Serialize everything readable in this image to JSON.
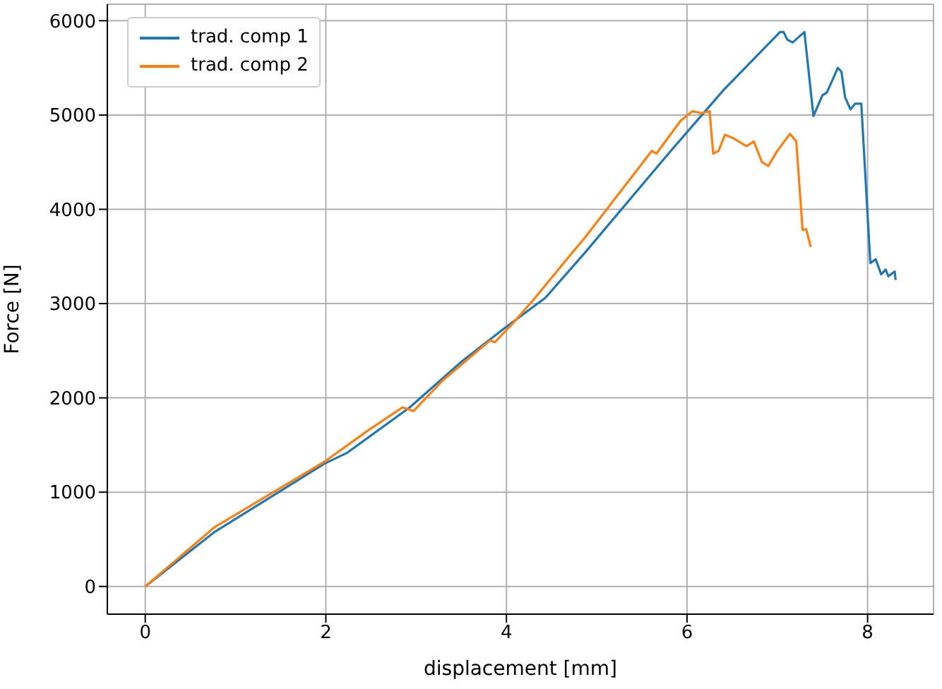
{
  "chart_data": {
    "type": "line",
    "xlabel": "displacement [mm]",
    "ylabel": "Force [N]",
    "xlim": [
      -0.42,
      8.73
    ],
    "ylim": [
      -294,
      6175
    ],
    "xticks": [
      0,
      2,
      4,
      6,
      8
    ],
    "yticks": [
      0,
      1000,
      2000,
      3000,
      4000,
      5000,
      6000
    ],
    "grid": true,
    "legend": "top left",
    "series": [
      {
        "name": "trad. comp 1",
        "color": "#1f77b4",
        "x": [
          0,
          0.77,
          1.98,
          2.24,
          2.93,
          3.51,
          3.98,
          4.43,
          4.87,
          5.82,
          6.4,
          7.03,
          7.07,
          7.11,
          7.17,
          7.3,
          7.4,
          7.5,
          7.55,
          7.67,
          7.71,
          7.75,
          7.81,
          7.86,
          7.93,
          8.03,
          8.09,
          8.15,
          8.2,
          8.23,
          8.3,
          8.31
        ],
        "values": [
          0,
          580,
          1300,
          1420,
          1900,
          2390,
          2740,
          3060,
          3540,
          4620,
          5260,
          5880,
          5880,
          5800,
          5770,
          5880,
          4990,
          5210,
          5240,
          5500,
          5460,
          5190,
          5060,
          5120,
          5120,
          3430,
          3470,
          3310,
          3360,
          3290,
          3340,
          3250
        ]
      },
      {
        "name": "trad. comp 2",
        "color": "#ff7f0e",
        "x": [
          0,
          0.77,
          1.98,
          2.46,
          2.85,
          2.97,
          3.3,
          3.82,
          3.87,
          4.07,
          4.29,
          4.72,
          4.87,
          5.61,
          5.66,
          5.93,
          6.06,
          6.16,
          6.25,
          6.29,
          6.35,
          6.42,
          6.5,
          6.66,
          6.74,
          6.83,
          6.9,
          7.0,
          7.14,
          7.21,
          7.28,
          7.32,
          7.37
        ],
        "values": [
          0,
          630,
          1320,
          1650,
          1900,
          1860,
          2190,
          2610,
          2590,
          2790,
          3030,
          3530,
          3700,
          4620,
          4590,
          4940,
          5040,
          5020,
          5040,
          4590,
          4620,
          4790,
          4760,
          4670,
          4720,
          4500,
          4460,
          4620,
          4800,
          4720,
          3780,
          3790,
          3600
        ]
      }
    ]
  }
}
